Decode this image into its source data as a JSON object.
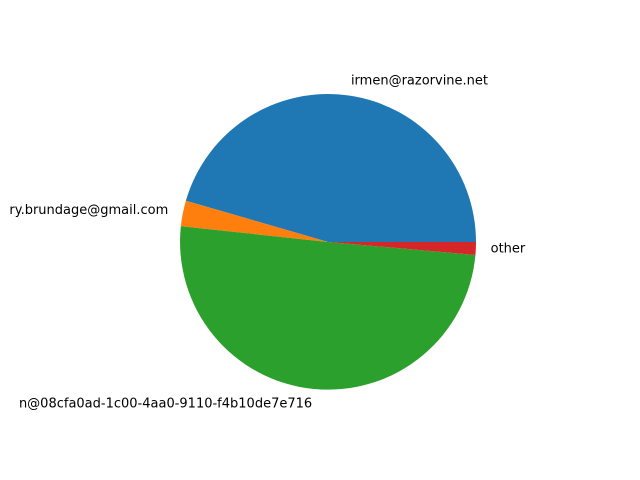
{
  "chart_data": {
    "type": "pie",
    "title": "",
    "start_angle_deg": 0,
    "direction": "counterclockwise",
    "slices": [
      {
        "label": "irmen@razorvine.net",
        "value": 45.5,
        "color": "#1f77b4"
      },
      {
        "label": "ry.brundage@gmail.com",
        "value": 2.8,
        "color": "#ff7f0e"
      },
      {
        "label": "n@08cfa0ad-1c00-4aa0-9110-f4b10de7e716",
        "value": 50.3,
        "color": "#2ca02c"
      },
      {
        "label": "other",
        "value": 1.4,
        "color": "#d62728"
      }
    ]
  }
}
